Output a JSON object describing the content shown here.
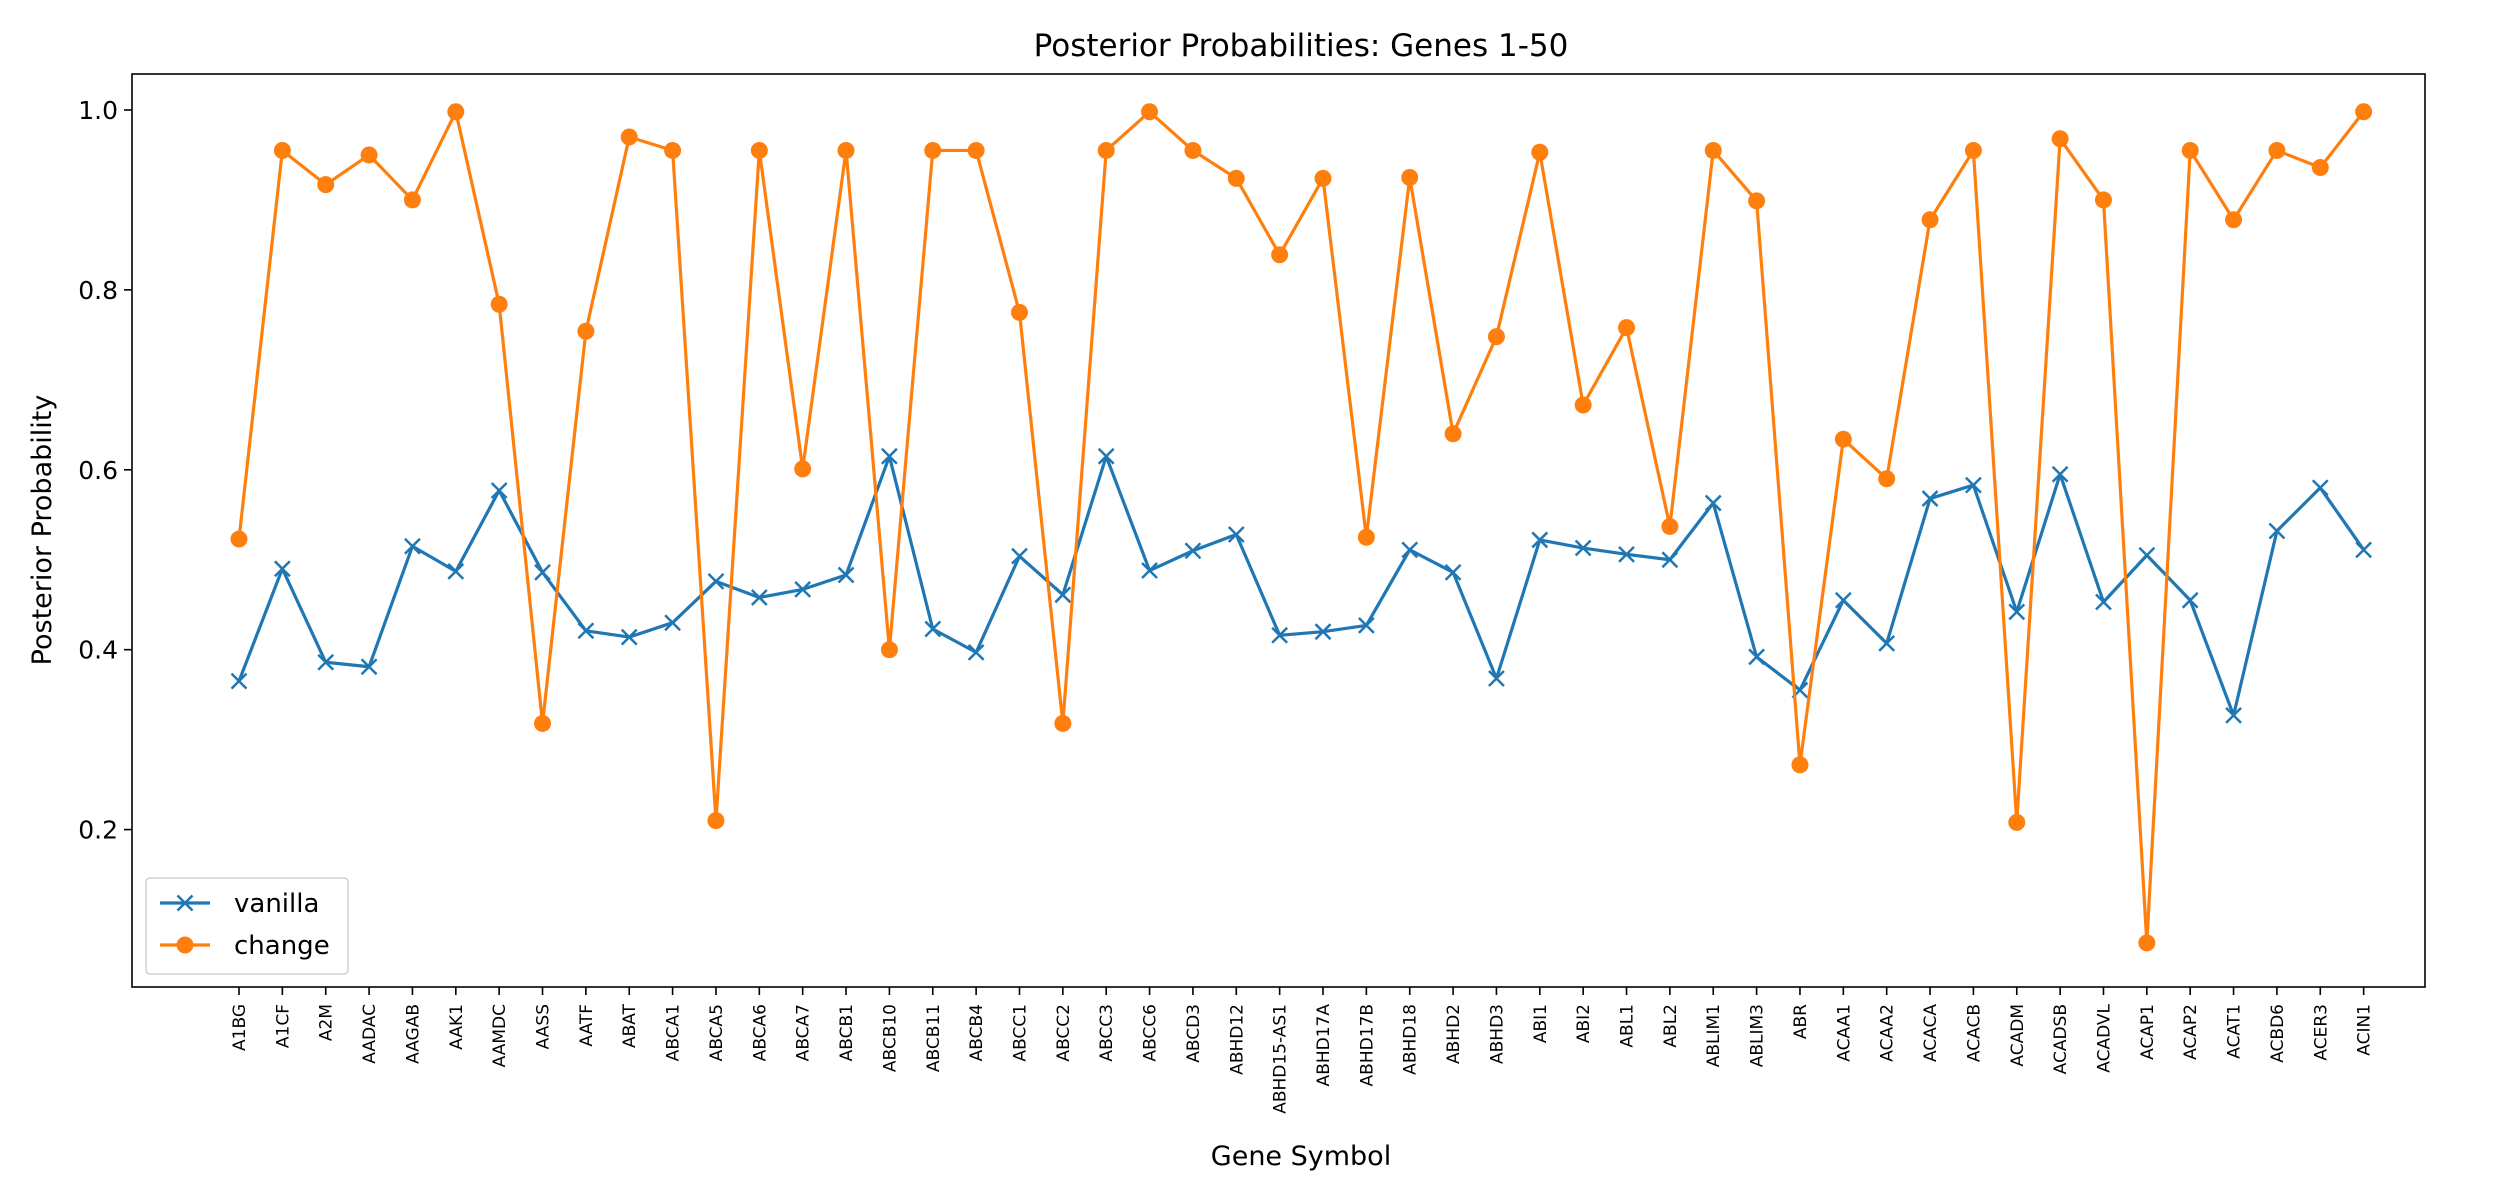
{
  "chart_data": {
    "type": "line",
    "title": "Posterior Probabilities: Genes 1-50",
    "xlabel": "Gene Symbol",
    "ylabel": "Posterior Probability",
    "ylim": [
      0.025,
      1.04
    ],
    "yticks": [
      0.2,
      0.4,
      0.6,
      0.8,
      1.0
    ],
    "ytick_labels": [
      "0.2",
      "0.4",
      "0.6",
      "0.8",
      "1.0"
    ],
    "grid": false,
    "legend_position": "lower-left",
    "categories": [
      "A1BG",
      "A1CF",
      "A2M",
      "AADAC",
      "AAGAB",
      "AAK1",
      "AAMDC",
      "AASS",
      "AATF",
      "ABAT",
      "ABCA1",
      "ABCA5",
      "ABCA6",
      "ABCA7",
      "ABCB1",
      "ABCB10",
      "ABCB11",
      "ABCB4",
      "ABCC1",
      "ABCC2",
      "ABCC3",
      "ABCC6",
      "ABCD3",
      "ABHD12",
      "ABHD15-AS1",
      "ABHD17A",
      "ABHD17B",
      "ABHD18",
      "ABHD2",
      "ABHD3",
      "ABI1",
      "ABI2",
      "ABL1",
      "ABL2",
      "ABLIM1",
      "ABLIM3",
      "ABR",
      "ACAA1",
      "ACAA2",
      "ACACA",
      "ACACB",
      "ACADM",
      "ACADSB",
      "ACADVL",
      "ACAP1",
      "ACAP2",
      "ACAT1",
      "ACBD6",
      "ACER3",
      "ACIN1"
    ],
    "series": [
      {
        "name": "vanilla",
        "color": "#1f77b4",
        "marker": "x",
        "values": [
          0.365,
          0.49,
          0.386,
          0.381,
          0.515,
          0.487,
          0.577,
          0.486,
          0.421,
          0.414,
          0.43,
          0.476,
          0.458,
          0.467,
          0.483,
          0.615,
          0.423,
          0.397,
          0.504,
          0.461,
          0.615,
          0.488,
          0.51,
          0.528,
          0.416,
          0.42,
          0.427,
          0.511,
          0.486,
          0.368,
          0.522,
          0.513,
          0.506,
          0.5,
          0.563,
          0.392,
          0.355,
          0.455,
          0.407,
          0.568,
          0.583,
          0.442,
          0.595,
          0.453,
          0.505,
          0.455,
          0.327,
          0.532,
          0.58,
          0.511
        ]
      },
      {
        "name": "change",
        "color": "#ff7f0e",
        "marker": "o",
        "values": [
          0.523,
          0.955,
          0.917,
          0.95,
          0.9,
          0.998,
          0.784,
          0.318,
          0.754,
          0.97,
          0.955,
          0.21,
          0.955,
          0.601,
          0.955,
          0.4,
          0.955,
          0.955,
          0.775,
          0.318,
          0.955,
          0.998,
          0.955,
          0.924,
          0.839,
          0.924,
          0.525,
          0.925,
          0.64,
          0.748,
          0.953,
          0.672,
          0.758,
          0.537,
          0.955,
          0.899,
          0.272,
          0.634,
          0.59,
          0.878,
          0.955,
          0.208,
          0.968,
          0.9,
          0.074,
          0.955,
          0.878,
          0.955,
          0.936,
          0.998
        ]
      }
    ]
  }
}
